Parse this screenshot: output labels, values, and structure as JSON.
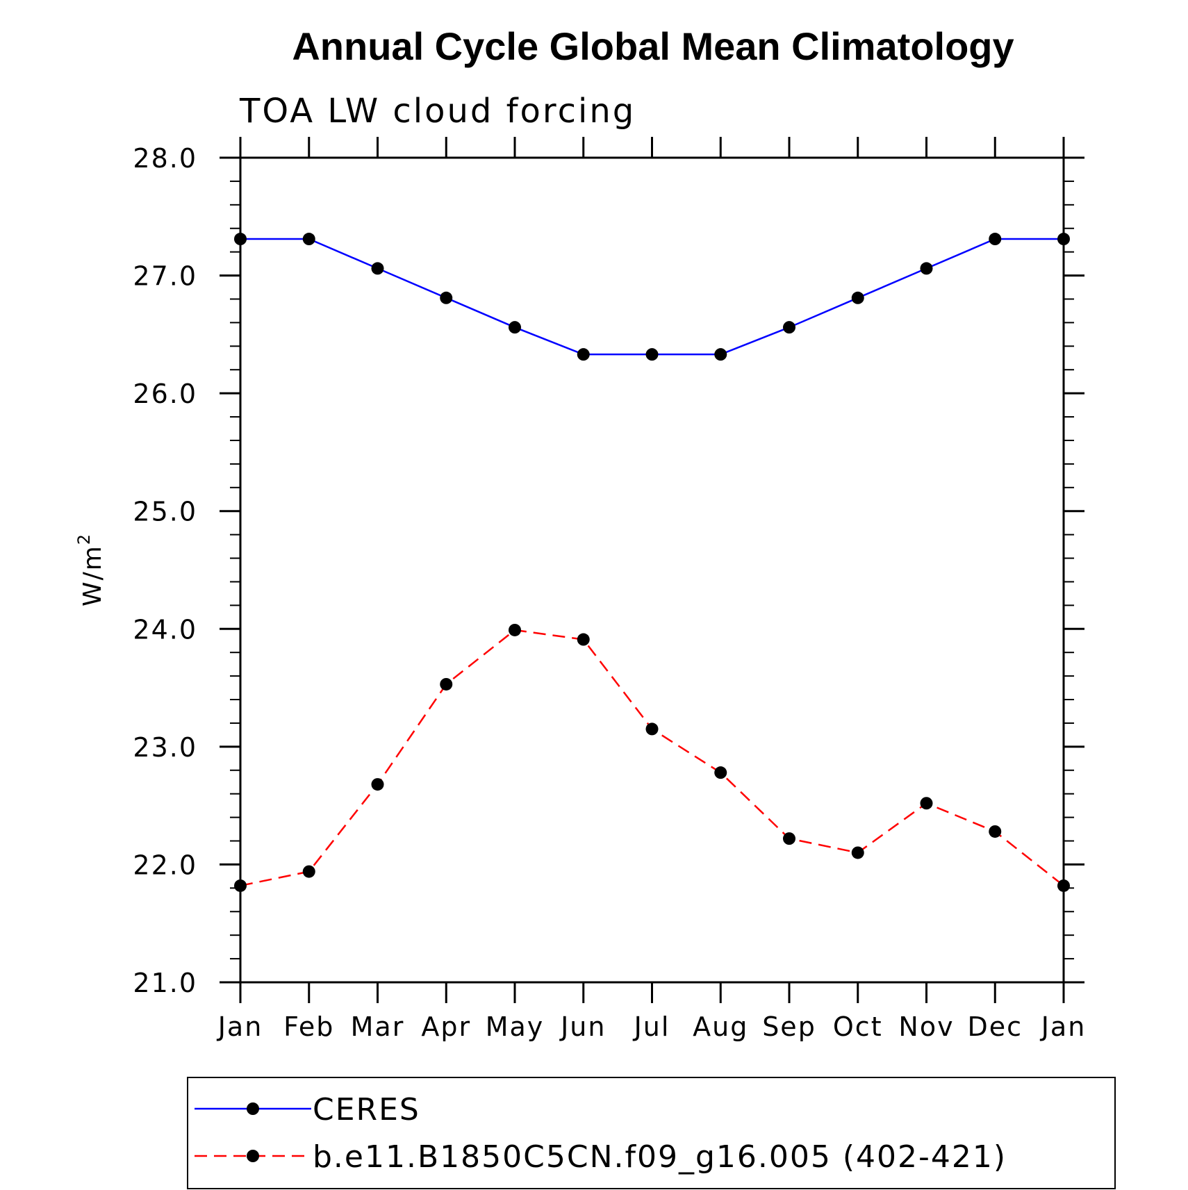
{
  "chart_data": {
    "type": "line",
    "title": "Annual Cycle Global Mean Climatology",
    "subtitle": "TOA LW cloud forcing",
    "xlabel": "",
    "ylabel": "W/m",
    "ylabel_superscript": "2",
    "categories": [
      "Jan",
      "Feb",
      "Mar",
      "Apr",
      "May",
      "Jun",
      "Jul",
      "Aug",
      "Sep",
      "Oct",
      "Nov",
      "Dec",
      "Jan"
    ],
    "ylim": [
      21.0,
      28.0
    ],
    "yticks": [
      "21.0",
      "22.0",
      "23.0",
      "24.0",
      "25.0",
      "26.0",
      "27.0",
      "28.0"
    ],
    "grid": false,
    "legend_position": "bottom",
    "series": [
      {
        "name": "CERES",
        "color": "#0000ff",
        "line_style": "solid",
        "values": [
          27.31,
          27.31,
          27.06,
          26.81,
          26.56,
          26.33,
          26.33,
          26.33,
          26.56,
          26.81,
          27.06,
          27.31,
          27.31
        ]
      },
      {
        "name": "b.e11.B1850C5CN.f09_g16.005 (402-421)",
        "color": "#ff0000",
        "line_style": "dashed",
        "values": [
          21.82,
          21.94,
          22.68,
          23.53,
          23.99,
          23.91,
          23.15,
          22.78,
          22.22,
          22.1,
          22.52,
          22.28,
          21.82
        ]
      }
    ]
  }
}
